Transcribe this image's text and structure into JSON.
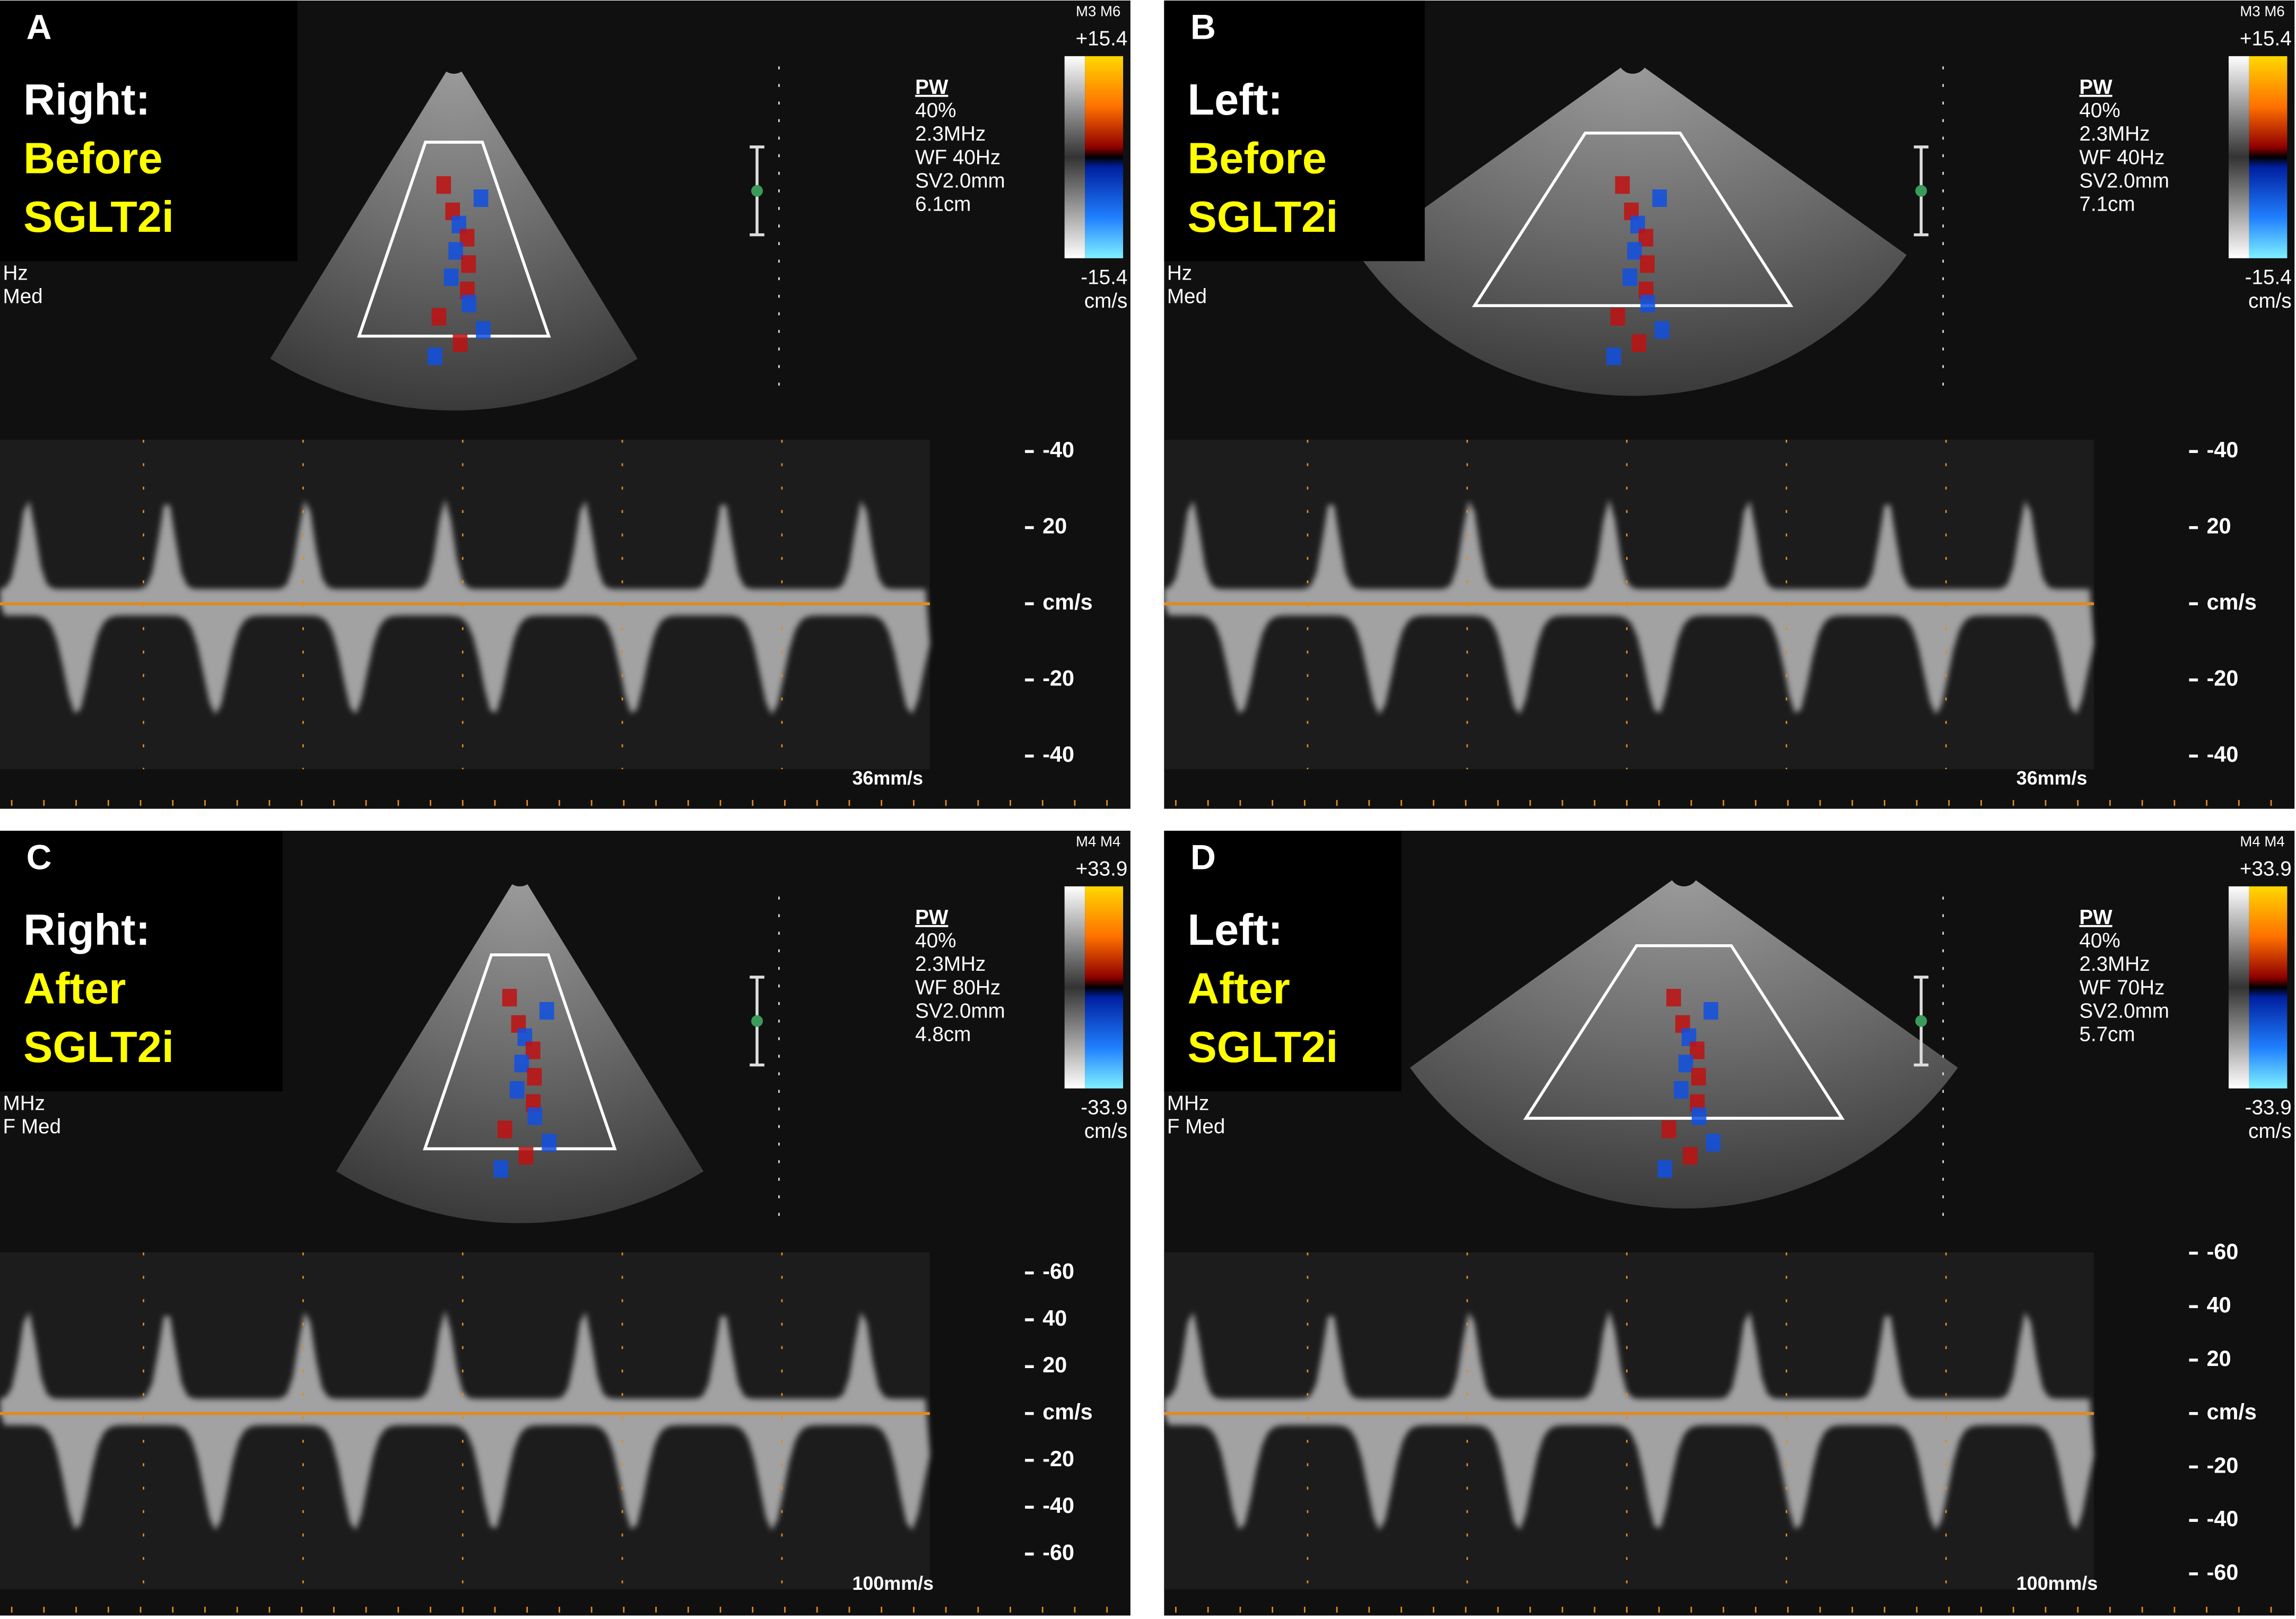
{
  "panels": [
    {
      "letter": "A",
      "line1": "Right:",
      "line2": "Before",
      "line3": "SGLT2i",
      "scale_label": "M3 M6",
      "scale_max": "+15.4",
      "scale_min": "-15.4",
      "scale_unit": "cm/s",
      "settings": [
        "PW",
        "40%",
        "2.3MHz",
        "WF  40Hz",
        "SV2.0mm",
        "6.1cm"
      ],
      "side_text": [
        "Hz",
        "Med"
      ],
      "axis": [
        "-40",
        "20",
        "cm/s",
        "-20",
        "-40"
      ],
      "speed": "36mm/s"
    },
    {
      "letter": "B",
      "line1": "Left:",
      "line2": "Before",
      "line3": "SGLT2i",
      "scale_label": "M3 M6",
      "scale_max": "+15.4",
      "scale_min": "-15.4",
      "scale_unit": "cm/s",
      "settings": [
        "PW",
        "40%",
        "2.3MHz",
        "WF  40Hz",
        "SV2.0mm",
        "7.1cm"
      ],
      "side_text": [
        "Hz",
        "Med"
      ],
      "axis": [
        "-40",
        "20",
        "cm/s",
        "-20",
        "-40"
      ],
      "speed": "36mm/s"
    },
    {
      "letter": "C",
      "line1": "Right:",
      "line2": "After",
      "line3": "SGLT2i",
      "scale_label": "M4 M4",
      "scale_max": "+33.9",
      "scale_min": "-33.9",
      "scale_unit": "cm/s",
      "settings": [
        "PW",
        "40%",
        "2.3MHz",
        "WF  80Hz",
        "SV2.0mm",
        "4.8cm"
      ],
      "side_text": [
        "MHz",
        "F Med"
      ],
      "axis": [
        "-60",
        "40",
        "20",
        "cm/s",
        "-20",
        "-40",
        "-60"
      ],
      "speed": "100mm/s"
    },
    {
      "letter": "D",
      "line1": "Left:",
      "line2": "After",
      "line3": "SGLT2i",
      "scale_label": "M4 M4",
      "scale_max": "+33.9",
      "scale_min": "-33.9",
      "scale_unit": "cm/s",
      "settings": [
        "PW",
        "40%",
        "2.3MHz",
        "WF  70Hz",
        "SV2.0mm",
        "5.7cm"
      ],
      "side_text": [
        "MHz",
        "F Med"
      ],
      "axis": [
        "-60",
        "40",
        "20",
        "cm/s",
        "-20",
        "-40",
        "-60"
      ],
      "speed": "100mm/s"
    }
  ]
}
